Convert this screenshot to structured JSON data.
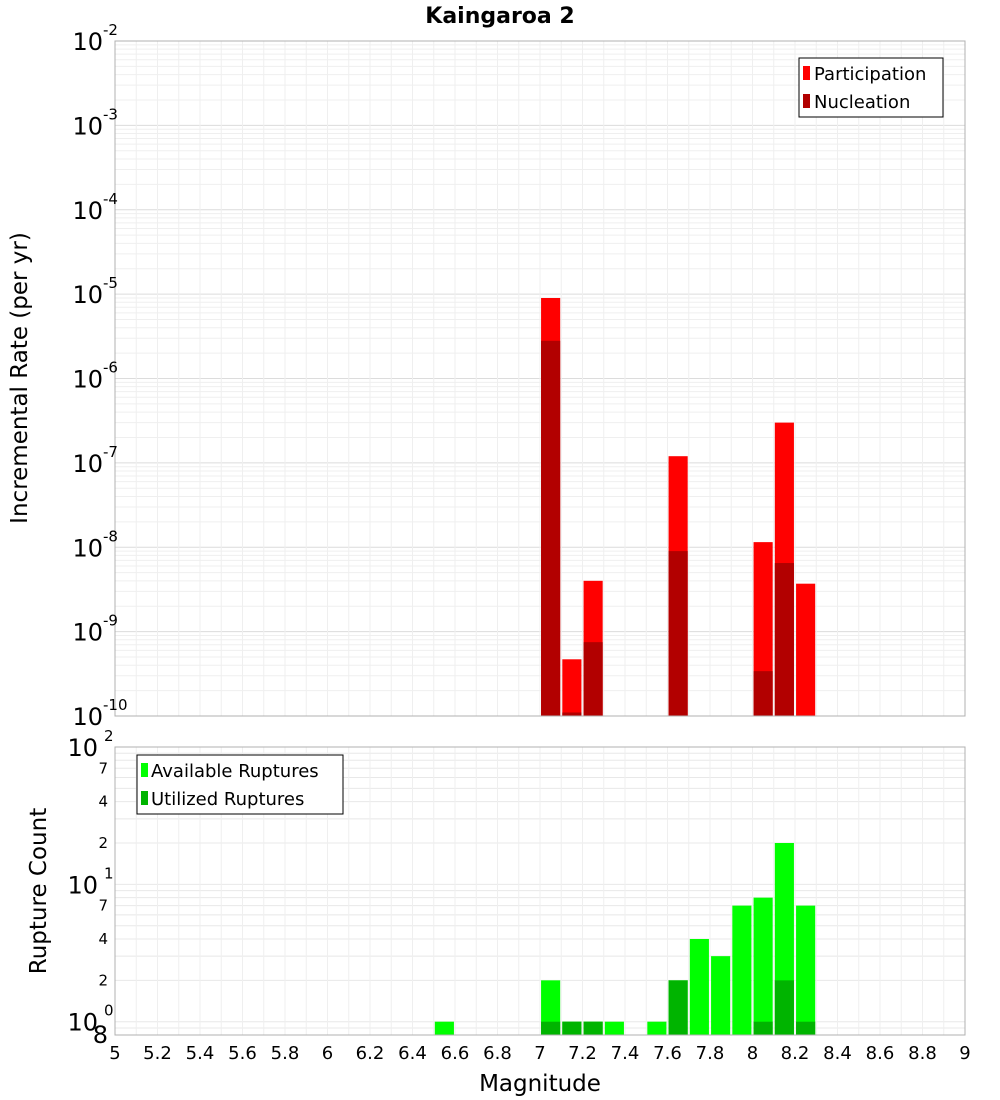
{
  "chart_data": [
    {
      "type": "bar",
      "title": "Kaingaroa 2",
      "xlabel": "",
      "ylabel": "Incremental Rate (per yr)",
      "xlim": [
        5,
        9
      ],
      "ylim": [
        1e-10,
        0.01
      ],
      "yscale": "log",
      "grid": true,
      "legend_position": "top-right",
      "y_ticks": [
        {
          "base": "10",
          "exp": "-10"
        },
        {
          "base": "10",
          "exp": "-9"
        },
        {
          "base": "10",
          "exp": "-8"
        },
        {
          "base": "10",
          "exp": "-7"
        },
        {
          "base": "10",
          "exp": "-6"
        },
        {
          "base": "10",
          "exp": "-5"
        },
        {
          "base": "10",
          "exp": "-4"
        },
        {
          "base": "10",
          "exp": "-3"
        },
        {
          "base": "10",
          "exp": "-2"
        }
      ],
      "x": [
        7.05,
        7.15,
        7.25,
        7.65,
        8.05,
        8.15,
        8.25
      ],
      "series": [
        {
          "name": "Participation",
          "color": "#ff0000",
          "values": [
            9e-06,
            4.7e-10,
            4e-09,
            1.2e-07,
            1.15e-08,
            3e-07,
            3.7e-09
          ]
        },
        {
          "name": "Nucleation",
          "color": "#b20000",
          "values": [
            2.8e-06,
            1.1e-10,
            7.5e-10,
            9e-09,
            3.4e-10,
            6.5e-09,
            null
          ]
        }
      ]
    },
    {
      "type": "bar",
      "title": "",
      "xlabel": "Magnitude",
      "ylabel": "Rupture Count",
      "xlim": [
        5,
        9
      ],
      "ylim": [
        0.8,
        100
      ],
      "yscale": "log",
      "grid": true,
      "legend_position": "top-left",
      "x_ticks": [
        "5",
        "5.2",
        "5.4",
        "5.6",
        "5.8",
        "6",
        "6.2",
        "6.4",
        "6.6",
        "6.8",
        "7",
        "7.2",
        "7.4",
        "7.6",
        "7.8",
        "8",
        "8.2",
        "8.4",
        "8.6",
        "8.8",
        "9"
      ],
      "y_major_ticks": [
        {
          "value": 1,
          "base": "10",
          "exp": "0"
        },
        {
          "value": 10,
          "base": "10",
          "exp": "1"
        },
        {
          "value": 100,
          "base": "10",
          "exp": "2"
        }
      ],
      "y_minor_ticks": [
        {
          "value": 0.8,
          "label": "8"
        },
        {
          "value": 2,
          "label": "2"
        },
        {
          "value": 4,
          "label": "4"
        },
        {
          "value": 7,
          "label": "7"
        },
        {
          "value": 20,
          "label": "2"
        },
        {
          "value": 40,
          "label": "4"
        },
        {
          "value": 70,
          "label": "7"
        }
      ],
      "x": [
        6.55,
        7.05,
        7.15,
        7.25,
        7.35,
        7.55,
        7.65,
        7.75,
        7.85,
        7.95,
        8.05,
        8.15,
        8.25
      ],
      "series": [
        {
          "name": "Available Ruptures",
          "color": "#00ff00",
          "values": [
            1,
            2,
            1,
            1,
            1,
            1,
            2,
            4,
            3,
            7,
            8,
            20,
            7
          ]
        },
        {
          "name": "Utilized Ruptures",
          "color": "#00b400",
          "values": [
            null,
            1,
            1,
            1,
            null,
            null,
            2,
            null,
            null,
            null,
            1,
            2,
            1
          ]
        }
      ]
    }
  ]
}
